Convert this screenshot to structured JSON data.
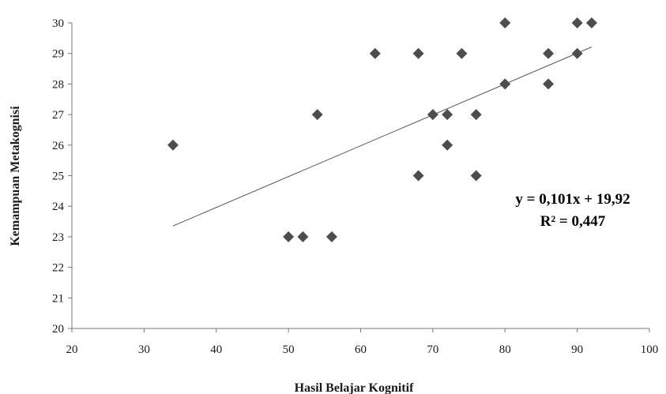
{
  "chart_data": {
    "type": "scatter",
    "xlabel": "Hasil Belajar Kognitif",
    "ylabel": "Kemampuan Metakognisi",
    "xlim": [
      20,
      100
    ],
    "ylim": [
      20,
      30
    ],
    "x_ticks": [
      20,
      30,
      40,
      50,
      60,
      70,
      80,
      90,
      100
    ],
    "y_ticks": [
      20,
      21,
      22,
      23,
      24,
      25,
      26,
      27,
      28,
      29,
      30
    ],
    "grid": false,
    "marker": "diamond",
    "marker_color": "#4d4d4d",
    "points": [
      {
        "x": 34,
        "y": 26
      },
      {
        "x": 50,
        "y": 23
      },
      {
        "x": 52,
        "y": 23
      },
      {
        "x": 54,
        "y": 27
      },
      {
        "x": 56,
        "y": 23
      },
      {
        "x": 62,
        "y": 29
      },
      {
        "x": 68,
        "y": 29
      },
      {
        "x": 68,
        "y": 25
      },
      {
        "x": 70,
        "y": 27
      },
      {
        "x": 72,
        "y": 27
      },
      {
        "x": 72,
        "y": 26
      },
      {
        "x": 74,
        "y": 29
      },
      {
        "x": 76,
        "y": 27
      },
      {
        "x": 76,
        "y": 25
      },
      {
        "x": 80,
        "y": 30
      },
      {
        "x": 80,
        "y": 28
      },
      {
        "x": 86,
        "y": 29
      },
      {
        "x": 86,
        "y": 28
      },
      {
        "x": 90,
        "y": 30
      },
      {
        "x": 90,
        "y": 29
      },
      {
        "x": 92,
        "y": 30
      }
    ],
    "trendline": {
      "type": "linear",
      "slope": 0.101,
      "intercept": 19.92,
      "x_range": [
        34,
        92
      ],
      "color": "#555555"
    },
    "annotations": {
      "equation": "y = 0,101x + 19,92",
      "r_squared": "R² = 0,447"
    }
  }
}
